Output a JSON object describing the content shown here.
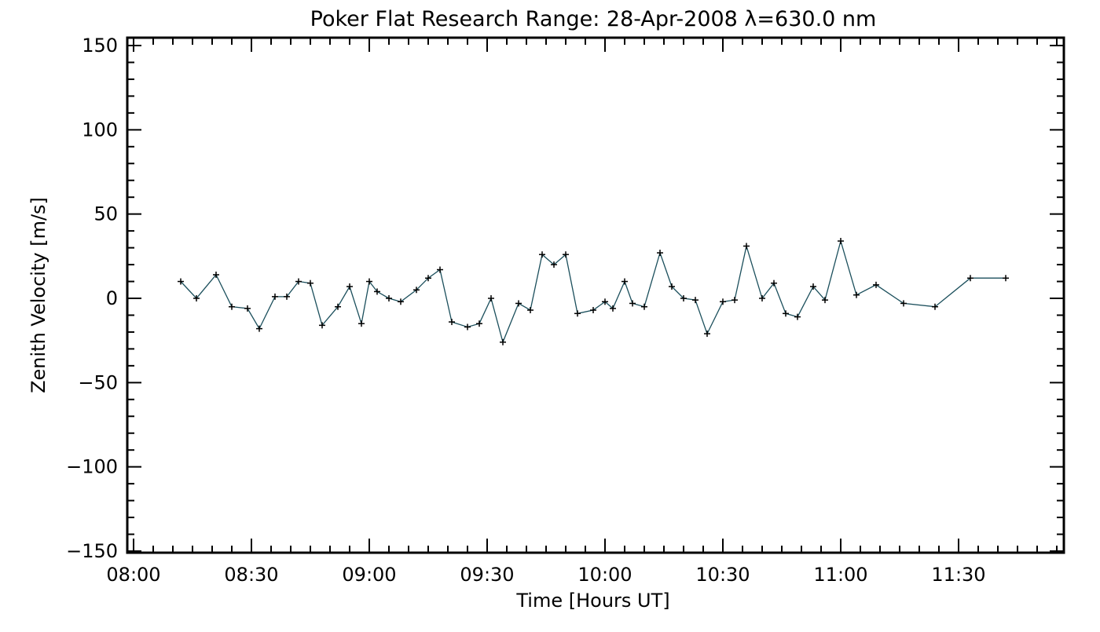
{
  "chart_data": {
    "type": "line",
    "title": "Poker Flat Research Range: 28-Apr-2008 λ=630.0 nm",
    "xlabel": "Time [Hours UT]",
    "ylabel": "Zenith Velocity [m/s]",
    "xlim": [
      "08:00",
      "12:00"
    ],
    "ylim": [
      -150,
      150
    ],
    "x_ticks": [
      "08:00",
      "08:30",
      "09:00",
      "09:30",
      "10:00",
      "10:30",
      "11:00",
      "11:30"
    ],
    "y_ticks": [
      "150",
      "100",
      "50",
      "0",
      "−50",
      "−100",
      "−150"
    ],
    "grid": false,
    "marker": "+",
    "line_color": "#1b4f5c",
    "series": [
      {
        "x": [
          "08:12",
          "08:16",
          "08:21",
          "08:25",
          "08:29",
          "08:32",
          "08:36",
          "08:39",
          "08:42",
          "08:45",
          "08:48",
          "08:52",
          "08:55",
          "08:58",
          "09:00",
          "09:02",
          "09:05",
          "09:08",
          "09:12",
          "09:15",
          "09:18",
          "09:21",
          "09:25",
          "09:28",
          "09:31",
          "09:34",
          "09:38",
          "09:41",
          "09:44",
          "09:47",
          "09:50",
          "09:53",
          "09:57",
          "10:00",
          "10:02",
          "10:05",
          "10:07",
          "10:10",
          "10:14",
          "10:17",
          "10:20",
          "10:23",
          "10:26",
          "10:30",
          "10:33",
          "10:36",
          "10:40",
          "10:43",
          "10:46",
          "10:49",
          "10:53",
          "10:56",
          "11:00",
          "11:04",
          "11:09",
          "11:16",
          "11:24",
          "11:33",
          "11:42"
        ],
        "y": [
          10,
          0,
          14,
          -5,
          -6,
          -18,
          1,
          1,
          10,
          9,
          -16,
          -5,
          7,
          -15,
          10,
          4,
          0,
          -2,
          5,
          12,
          17,
          -14,
          -17,
          -15,
          0,
          -26,
          -3,
          -7,
          26,
          20,
          26,
          -9,
          -7,
          -2,
          -6,
          10,
          -3,
          -5,
          27,
          7,
          0,
          -1,
          -21,
          -2,
          -1,
          31,
          0,
          9,
          -9,
          -11,
          7,
          -1,
          34,
          2,
          8,
          -3,
          -5,
          12,
          12
        ]
      }
    ]
  }
}
